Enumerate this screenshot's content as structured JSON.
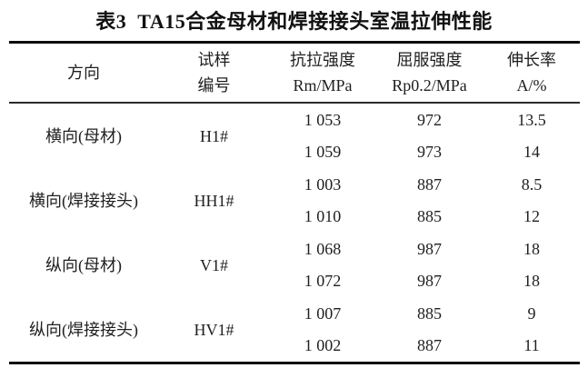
{
  "title": "表3  TA15合金母材和焊接接头室温拉伸性能",
  "colors": {
    "text": "#1f1f1f",
    "thick_rule": "#0d0d0d",
    "thin_rule": "#2b2b2b",
    "background": "#ffffff"
  },
  "table": {
    "columns": [
      {
        "line1": "方向",
        "line2": ""
      },
      {
        "line1": "试样",
        "line2": "编号"
      },
      {
        "line1": "抗拉强度",
        "line2": "Rm/MPa"
      },
      {
        "line1": "屈服强度",
        "line2": "Rp0.2/MPa"
      },
      {
        "line1": "伸长率",
        "line2": "A/%"
      }
    ],
    "groups": [
      {
        "direction": "横向(母材)",
        "sample": "H1#",
        "rows": [
          {
            "rm": "1 053",
            "rp": "972",
            "a": "13.5"
          },
          {
            "rm": "1 059",
            "rp": "973",
            "a": "14"
          }
        ]
      },
      {
        "direction": "横向(焊接接头)",
        "sample": "HH1#",
        "rows": [
          {
            "rm": "1 003",
            "rp": "887",
            "a": "8.5"
          },
          {
            "rm": "1 010",
            "rp": "885",
            "a": "12"
          }
        ]
      },
      {
        "direction": "纵向(母材)",
        "sample": "V1#",
        "rows": [
          {
            "rm": "1 068",
            "rp": "987",
            "a": "18"
          },
          {
            "rm": "1 072",
            "rp": "987",
            "a": "18"
          }
        ]
      },
      {
        "direction": "纵向(焊接接头)",
        "sample": "HV1#",
        "rows": [
          {
            "rm": "1 007",
            "rp": "885",
            "a": "9"
          },
          {
            "rm": "1 002",
            "rp": "887",
            "a": "11"
          }
        ]
      }
    ]
  }
}
